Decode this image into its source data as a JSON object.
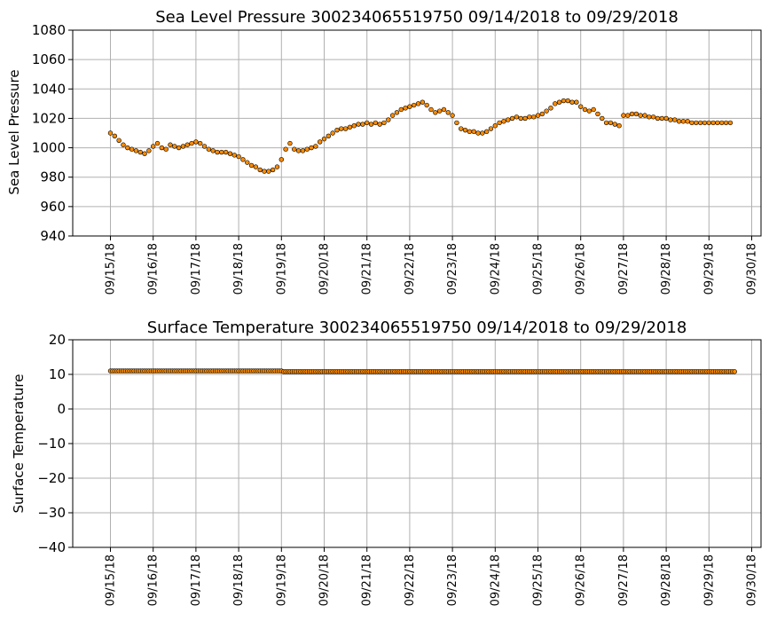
{
  "chart_data": [
    {
      "type": "scatter",
      "title": "Sea Level Pressure 300234065519750  09/14/2018 to 09/29/2018",
      "ylabel": "Sea Level Pressure",
      "xlabel": "",
      "ylim": [
        940,
        1080
      ],
      "yticks": [
        940,
        960,
        980,
        1000,
        1020,
        1040,
        1060,
        1080
      ],
      "xlim": [
        "09/14/2018 12:00",
        "09/30/2018 05:00"
      ],
      "xticks": [
        "09/15/18",
        "09/16/18",
        "09/17/18",
        "09/18/18",
        "09/19/18",
        "09/20/18",
        "09/21/18",
        "09/22/18",
        "09/23/18",
        "09/24/18",
        "09/25/18",
        "09/26/18",
        "09/27/18",
        "09/28/18",
        "09/29/18",
        "09/30/18"
      ],
      "grid": true,
      "marker_color": "#ff8c00",
      "series": [
        {
          "x_days": [
            0.0,
            0.1,
            0.2,
            0.3,
            0.4,
            0.5,
            0.6,
            0.7,
            0.8,
            0.9,
            1.0,
            1.1,
            1.2,
            1.3,
            1.4,
            1.5,
            1.6,
            1.7,
            1.8,
            1.9,
            2.0,
            2.1,
            2.2,
            2.3,
            2.4,
            2.5,
            2.6,
            2.7,
            2.8,
            2.9,
            3.0,
            3.1,
            3.2,
            3.3,
            3.4,
            3.5,
            3.6,
            3.7,
            3.8,
            3.9,
            4.0,
            4.1,
            4.2,
            4.3,
            4.4,
            4.5,
            4.6,
            4.7,
            4.8,
            4.9,
            5.0,
            5.1,
            5.2,
            5.3,
            5.4,
            5.5,
            5.6,
            5.7,
            5.8,
            5.9,
            6.0,
            6.1,
            6.2,
            6.3,
            6.4,
            6.5,
            6.6,
            6.7,
            6.8,
            6.9,
            7.0,
            7.1,
            7.2,
            7.3,
            7.4,
            7.5,
            7.6,
            7.7,
            7.8,
            7.9,
            8.0,
            8.1,
            8.2,
            8.3,
            8.4,
            8.5,
            8.6,
            8.7,
            8.8,
            8.9,
            9.0,
            9.1,
            9.2,
            9.3,
            9.4,
            9.5,
            9.6,
            9.7,
            9.8,
            9.9,
            10.0,
            10.1,
            10.2,
            10.3,
            10.4,
            10.5,
            10.6,
            10.7,
            10.8,
            10.9,
            11.0,
            11.1,
            11.2,
            11.3,
            11.4,
            11.5,
            11.6,
            11.7,
            11.8,
            11.9,
            12.0,
            12.1,
            12.2,
            12.3,
            12.4,
            12.5,
            12.6,
            12.7,
            12.8,
            12.9,
            13.0,
            13.1,
            13.2,
            13.3,
            13.4,
            13.5,
            13.6,
            13.7,
            13.8,
            13.9,
            14.0,
            14.1,
            14.2,
            14.3,
            14.4,
            14.5
          ],
          "values": [
            1010,
            1008,
            1005,
            1002,
            1000,
            999,
            998,
            997,
            996,
            998,
            1001,
            1003,
            1000,
            999,
            1002,
            1001,
            1000,
            1001,
            1002,
            1003,
            1004,
            1003,
            1001,
            999,
            998,
            997,
            997,
            997,
            996,
            995,
            994,
            992,
            990,
            988,
            987,
            985,
            984,
            984,
            985,
            987,
            992,
            999,
            1003,
            999,
            998,
            998,
            999,
            1000,
            1001,
            1004,
            1006,
            1008,
            1010,
            1012,
            1013,
            1013,
            1014,
            1015,
            1016,
            1016,
            1017,
            1016,
            1017,
            1016,
            1017,
            1019,
            1022,
            1024,
            1026,
            1027,
            1028,
            1029,
            1030,
            1031,
            1029,
            1026,
            1024,
            1025,
            1026,
            1024,
            1022,
            1017,
            1013,
            1012,
            1011,
            1011,
            1010,
            1010,
            1011,
            1013,
            1015,
            1017,
            1018,
            1019,
            1020,
            1021,
            1020,
            1020,
            1021,
            1021,
            1022,
            1023,
            1025,
            1027,
            1030,
            1031,
            1032,
            1032,
            1031,
            1031,
            1028,
            1026,
            1025,
            1026,
            1023,
            1020,
            1017,
            1017,
            1016,
            1015,
            1022,
            1022,
            1023,
            1023,
            1022,
            1022,
            1021,
            1021,
            1020,
            1020,
            1020,
            1019,
            1019,
            1018,
            1018,
            1018,
            1017,
            1017,
            1017,
            1017,
            1017,
            1017,
            1017,
            1017,
            1017,
            1017
          ]
        }
      ]
    },
    {
      "type": "scatter",
      "title": "Surface Temperature 300234065519750  09/14/2018 to 09/29/2018",
      "ylabel": "Surface Temperature",
      "xlabel": "",
      "ylim": [
        -40,
        20
      ],
      "yticks": [
        -40,
        -30,
        -20,
        -10,
        0,
        10,
        20
      ],
      "xlim": [
        "09/14/2018 12:00",
        "09/30/2018 05:00"
      ],
      "xticks": [
        "09/15/18",
        "09/16/18",
        "09/17/18",
        "09/18/18",
        "09/19/18",
        "09/20/18",
        "09/21/18",
        "09/22/18",
        "09/23/18",
        "09/24/18",
        "09/25/18",
        "09/26/18",
        "09/27/18",
        "09/28/18",
        "09/29/18",
        "09/30/18"
      ],
      "grid": true,
      "marker_color": "#ff8c00",
      "series": [
        {
          "x_start": 0.0,
          "x_end": 14.6,
          "x_step": 0.05,
          "values_by_segment": [
            {
              "from": 0.0,
              "to": 4.0,
              "value": 11.0
            },
            {
              "from": 4.0,
              "to": 14.6,
              "value": 10.8
            }
          ]
        }
      ]
    }
  ]
}
